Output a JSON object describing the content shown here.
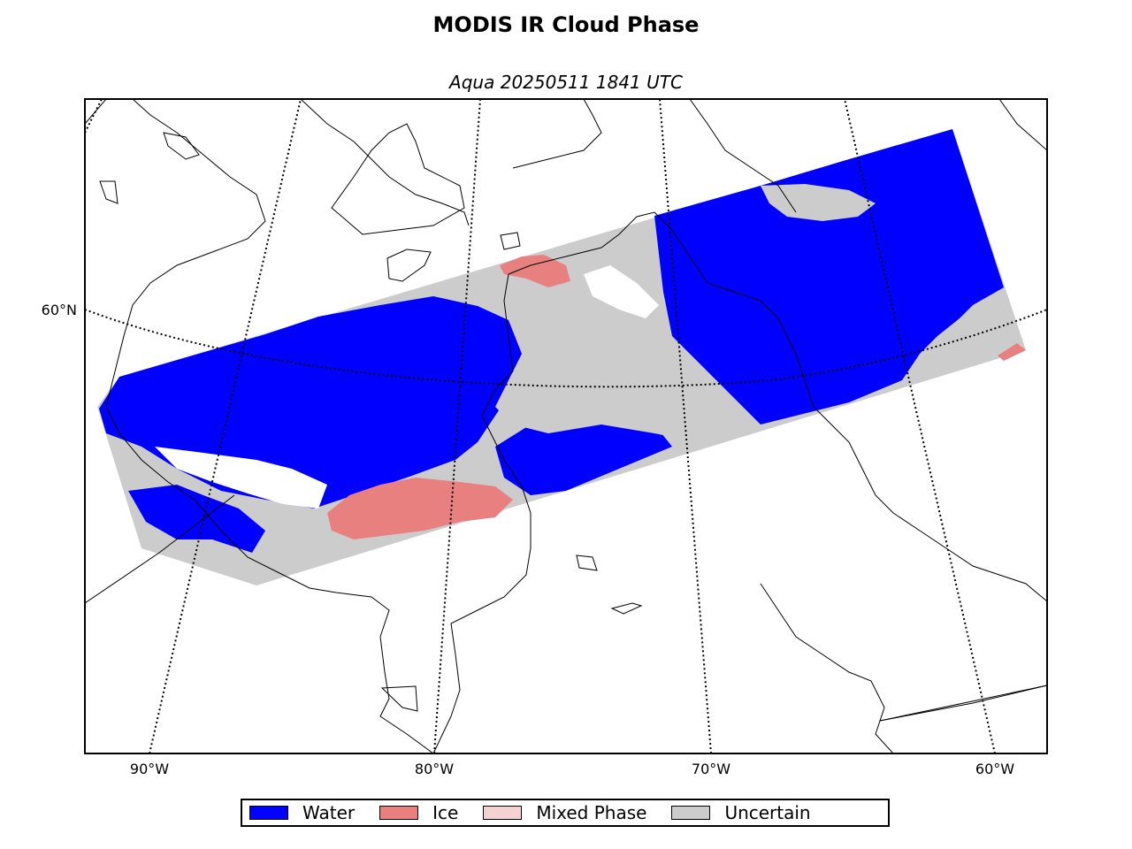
{
  "title": "MODIS IR Cloud Phase",
  "subtitle": "Aqua 20250511 1841 UTC",
  "map": {
    "latitude_labels": [
      "60°N"
    ],
    "longitude_labels": [
      "90°W",
      "80°W",
      "70°W",
      "60°W"
    ],
    "gridlines": "dotted"
  },
  "legend": [
    {
      "label": "Water",
      "color": "#0000ff"
    },
    {
      "label": "Ice",
      "color": "#e88080"
    },
    {
      "label": "Mixed Phase",
      "color": "#f5d2d2"
    },
    {
      "label": "Uncertain",
      "color": "#cccccc"
    }
  ],
  "colors": {
    "land_outline": "#000000",
    "background": "#ffffff",
    "no_data": "#ffffff"
  }
}
